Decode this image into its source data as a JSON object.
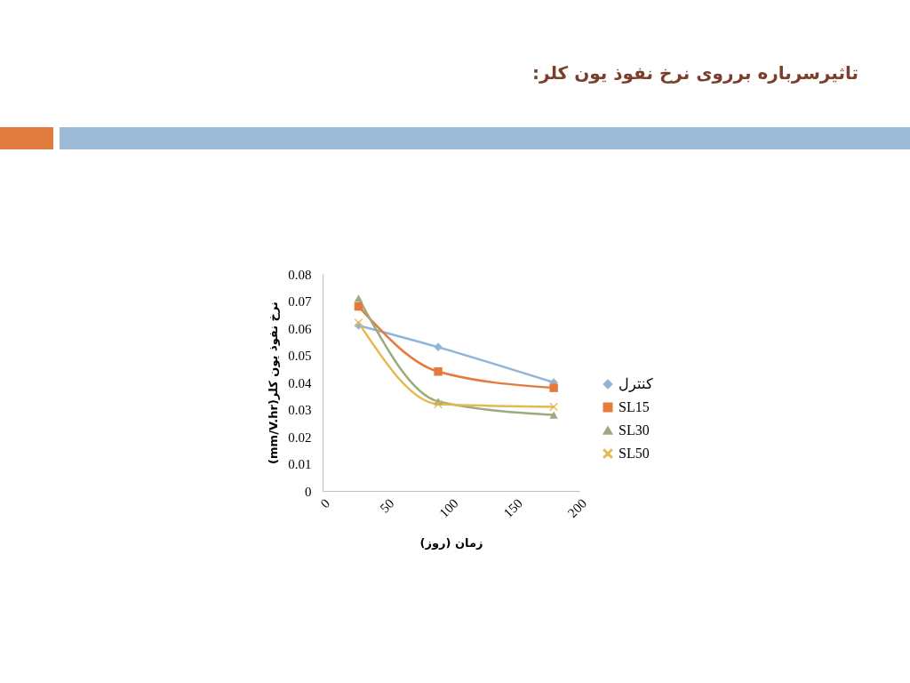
{
  "chart_data": {
    "type": "line",
    "title": "تاثیرسرباره برروی نرخ نفوذ یون کلر:",
    "xlabel": "زمان (روز)",
    "ylabel": "نرخ نفوذ یون کلر(mm/V.hr)",
    "x": [
      28,
      90,
      180
    ],
    "series": [
      {
        "name": "کنترل",
        "color": "#91b4d8",
        "marker": "diamond",
        "values": [
          0.061,
          0.053,
          0.04
        ]
      },
      {
        "name": "SL15",
        "color": "#e57a3d",
        "marker": "square",
        "values": [
          0.068,
          0.044,
          0.038
        ]
      },
      {
        "name": "SL30",
        "color": "#9bab7f",
        "marker": "triangle",
        "values": [
          0.071,
          0.033,
          0.028
        ]
      },
      {
        "name": "SL50",
        "color": "#e6b94f",
        "marker": "cross",
        "values": [
          0.062,
          0.032,
          0.031
        ]
      }
    ],
    "xlim": [
      0,
      200
    ],
    "xticks": [
      0,
      50,
      100,
      150,
      200
    ],
    "ylim": [
      0,
      0.08
    ],
    "yticks": [
      0,
      0.01,
      0.02,
      0.03,
      0.04,
      0.05,
      0.06,
      0.07,
      0.08
    ],
    "grid": false,
    "legend": "right",
    "line_style": "solid"
  }
}
